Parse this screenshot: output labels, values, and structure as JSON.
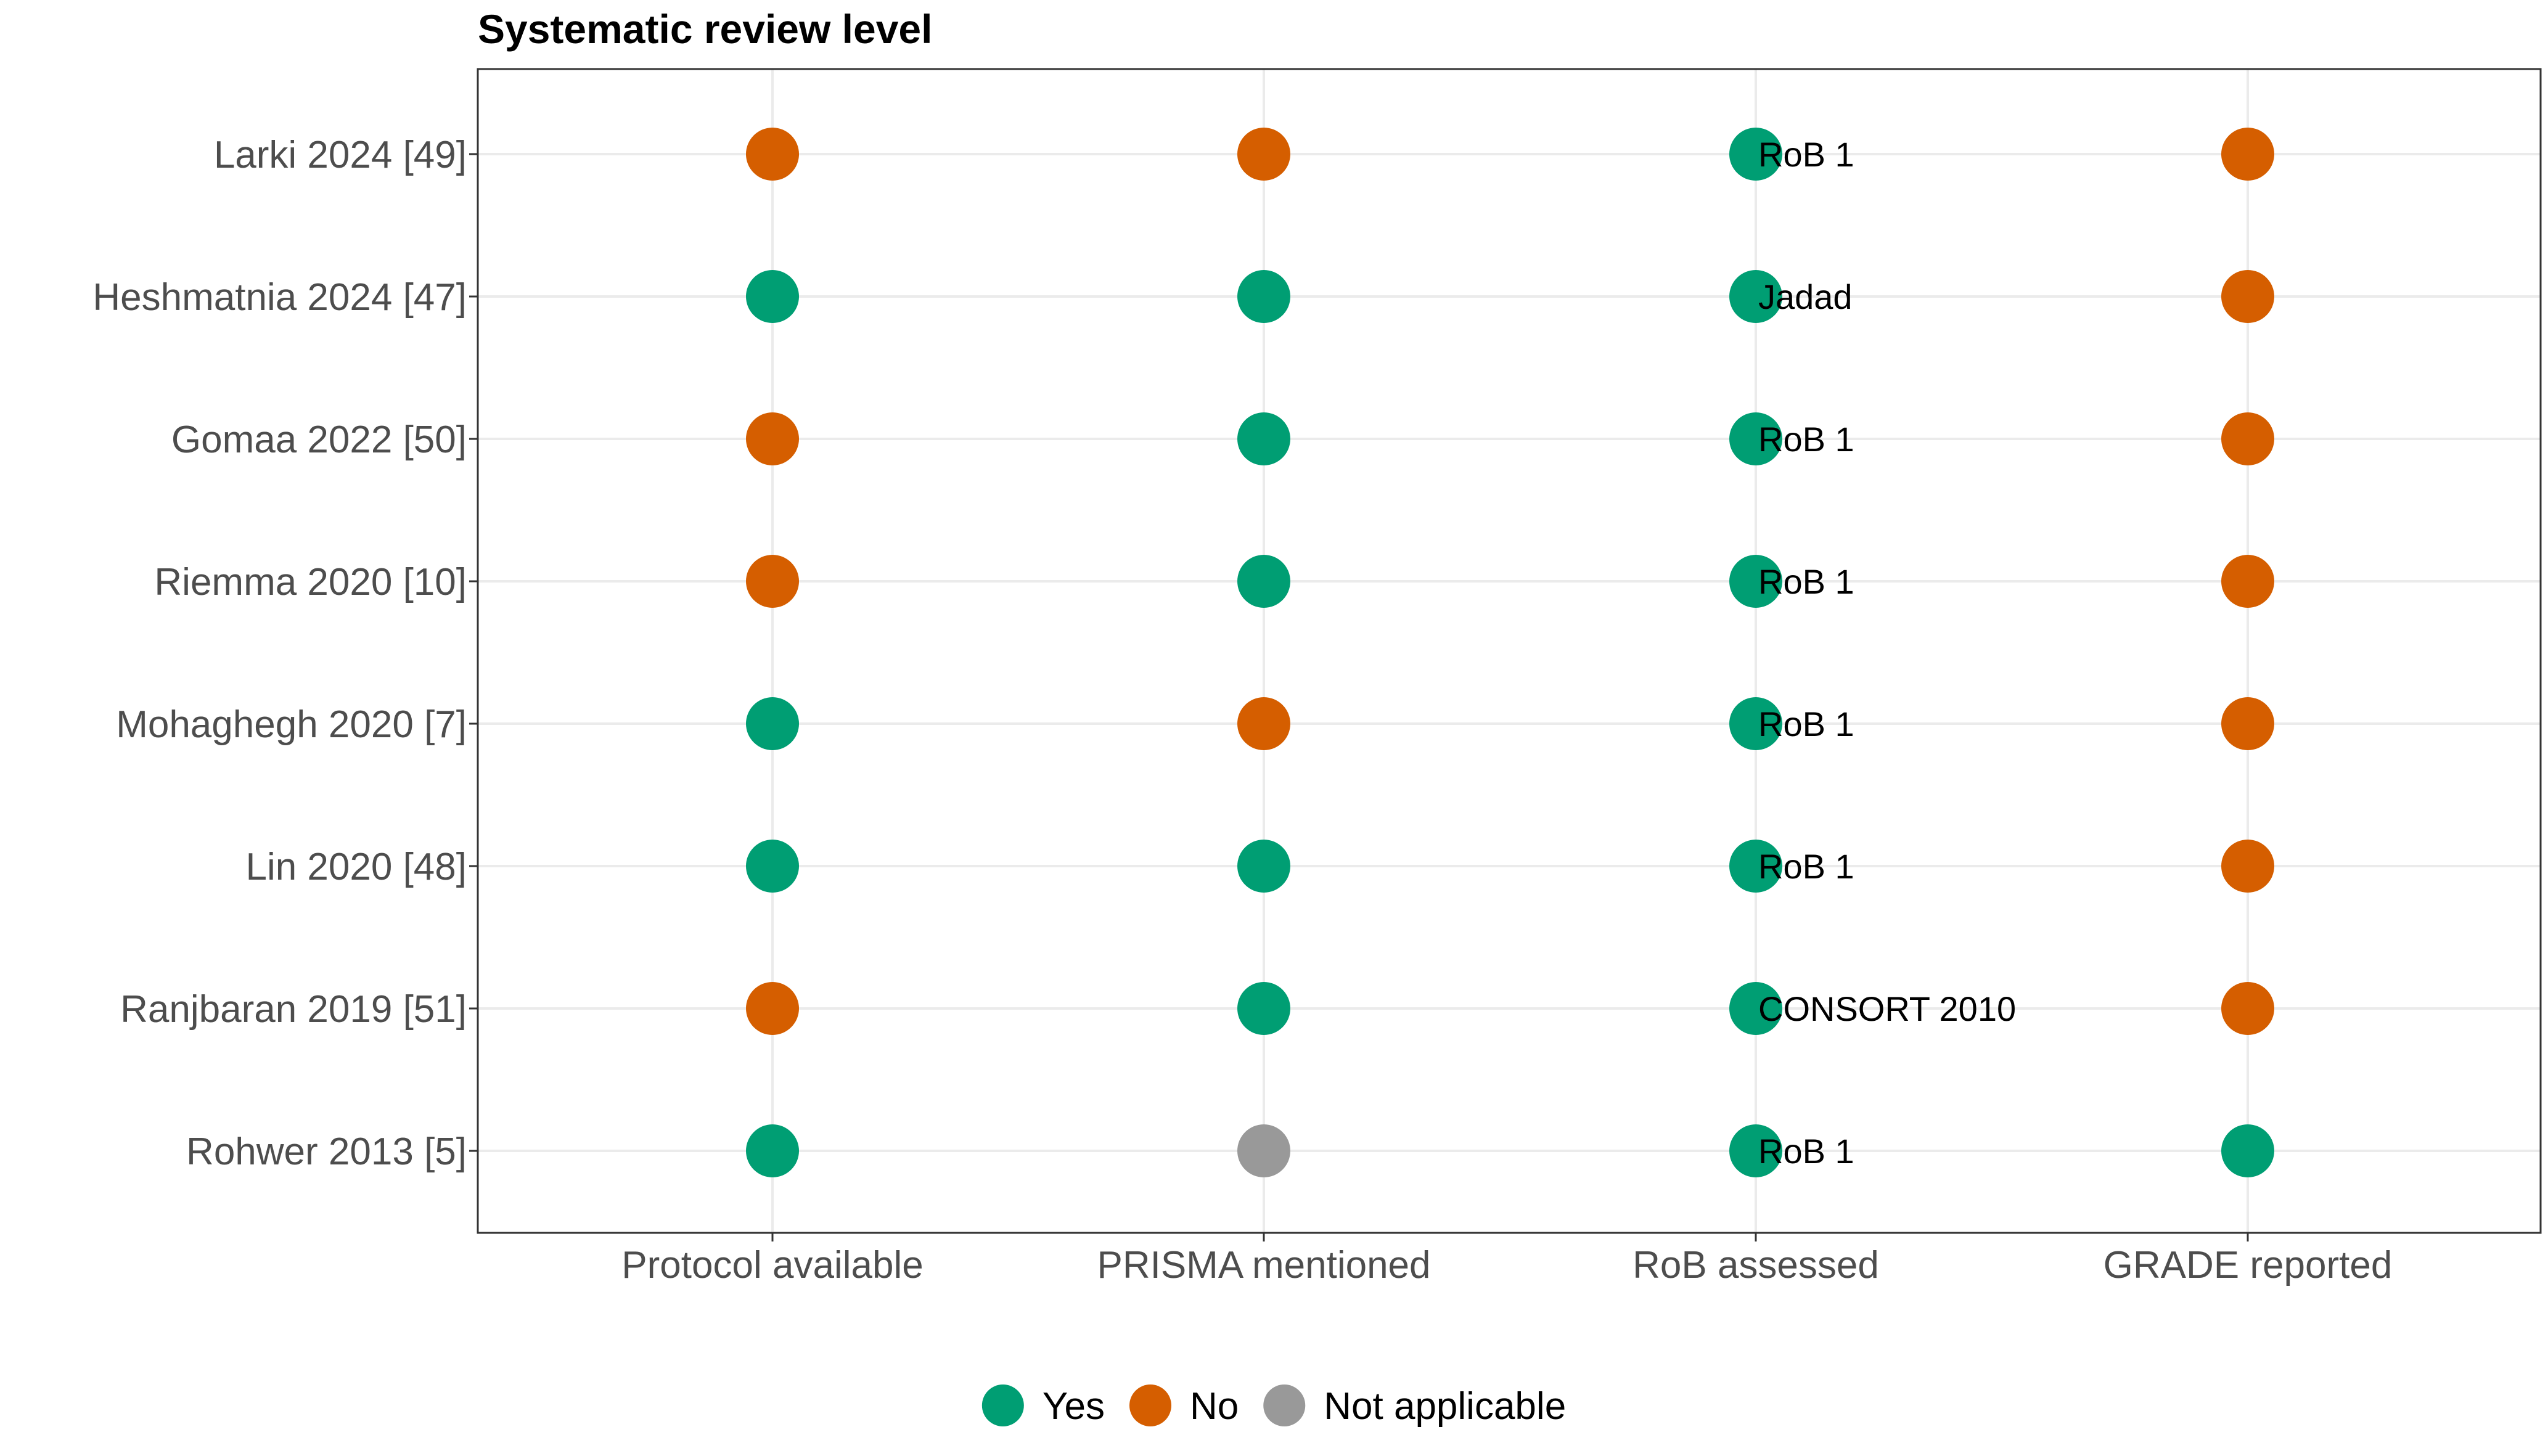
{
  "chart_data": {
    "type": "scatter",
    "title": "Systematic review level",
    "xlabel": "",
    "ylabel": "",
    "grid": true,
    "legend_position": "bottom",
    "categories_x": [
      "Protocol available",
      "PRISMA mentioned",
      "RoB assessed",
      "GRADE reported"
    ],
    "categories_y": [
      "Larki 2024 [49]",
      "Heshmatnia 2024 [47]",
      "Gomaa 2022 [50]",
      "Riemma 2020 [10]",
      "Mohaghegh 2020 [7]",
      "Lin 2020 [48]",
      "Ranjbaran 2019 [51]",
      "Rohwer 2013 [5]"
    ],
    "legend": [
      {
        "key": "Yes",
        "label": "Yes",
        "color": "#009E73"
      },
      {
        "key": "No",
        "label": "No",
        "color": "#D55E00"
      },
      {
        "key": "NA",
        "label": "Not applicable",
        "color": "#999999"
      }
    ],
    "points": [
      {
        "study": "Larki 2024 [49]",
        "values": [
          "No",
          "No",
          "Yes",
          "No"
        ],
        "rob_tool": "RoB 1"
      },
      {
        "study": "Heshmatnia 2024 [47]",
        "values": [
          "Yes",
          "Yes",
          "Yes",
          "No"
        ],
        "rob_tool": "Jadad"
      },
      {
        "study": "Gomaa 2022 [50]",
        "values": [
          "No",
          "Yes",
          "Yes",
          "No"
        ],
        "rob_tool": "RoB 1"
      },
      {
        "study": "Riemma 2020 [10]",
        "values": [
          "No",
          "Yes",
          "Yes",
          "No"
        ],
        "rob_tool": "RoB 1"
      },
      {
        "study": "Mohaghegh 2020 [7]",
        "values": [
          "Yes",
          "No",
          "Yes",
          "No"
        ],
        "rob_tool": "RoB 1"
      },
      {
        "study": "Lin 2020 [48]",
        "values": [
          "Yes",
          "Yes",
          "Yes",
          "No"
        ],
        "rob_tool": "RoB 1"
      },
      {
        "study": "Ranjbaran 2019 [51]",
        "values": [
          "No",
          "Yes",
          "Yes",
          "No"
        ],
        "rob_tool": "CONSORT 2010"
      },
      {
        "study": "Rohwer 2013 [5]",
        "values": [
          "Yes",
          "NA",
          "Yes",
          "Yes"
        ],
        "rob_tool": "RoB 1"
      }
    ]
  }
}
